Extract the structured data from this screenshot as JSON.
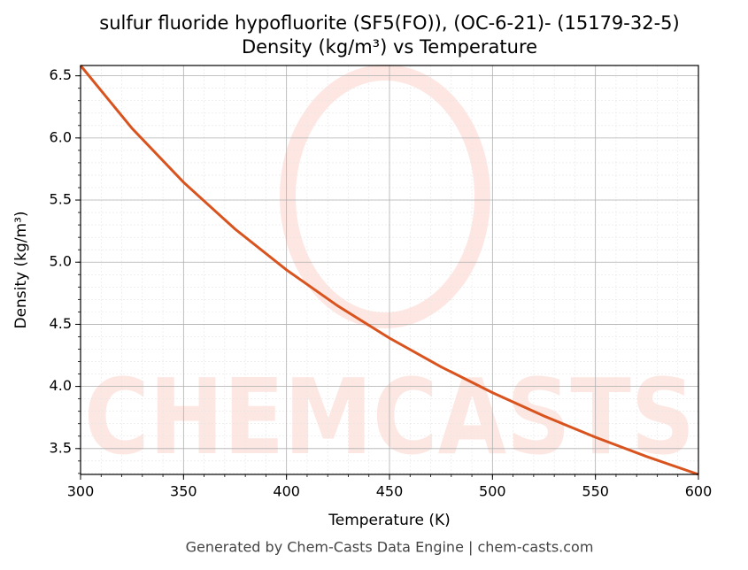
{
  "chart_data": {
    "type": "line",
    "title": "sulfur fluoride hypofluorite (SF5(FO)), (OC-6-21)- (15179-32-5)",
    "subtitle": "Density (kg/m³) vs Temperature",
    "xlabel": "Temperature (K)",
    "ylabel": "Density (kg/m³)",
    "footer": "Generated by Chem-Casts Data Engine | chem-casts.com",
    "watermark": "CHEMCASTS",
    "x": [
      300,
      325,
      350,
      375,
      400,
      425,
      450,
      475,
      500,
      525,
      550,
      575,
      600
    ],
    "series": [
      {
        "name": "Density",
        "color": "#d9531e",
        "values": [
          6.583,
          6.077,
          5.643,
          5.267,
          4.938,
          4.647,
          4.389,
          4.158,
          3.95,
          3.762,
          3.591,
          3.435,
          3.292
        ]
      }
    ],
    "xlim": [
      300,
      600
    ],
    "xticks": [
      300,
      350,
      400,
      450,
      500,
      550,
      600
    ],
    "ylim": [
      3.292,
      6.583
    ],
    "yticks": [
      {
        "value": 3.5,
        "label": "3.5"
      },
      {
        "value": 4.0,
        "label": "4.0"
      },
      {
        "value": 4.5,
        "label": "4.5"
      },
      {
        "value": 5.0,
        "label": "5.0"
      },
      {
        "value": 5.5,
        "label": "5.5"
      },
      {
        "value": 6.0,
        "label": "6.0"
      },
      {
        "value": 6.5,
        "label": "6.5"
      }
    ],
    "grid": true,
    "minor_grid": true
  }
}
